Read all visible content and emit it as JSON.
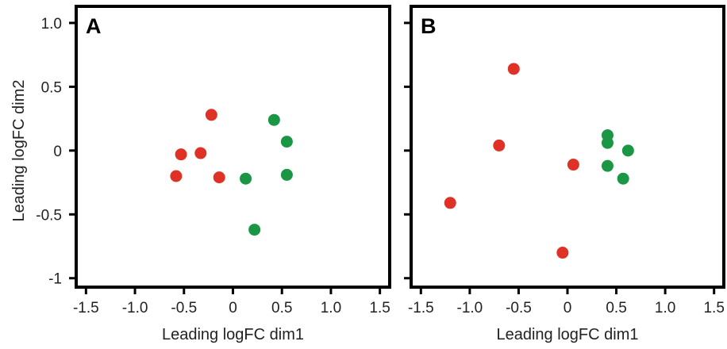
{
  "colors": {
    "red": "#e03127",
    "green": "#1a9645"
  },
  "chart_data": [
    {
      "type": "scatter",
      "panel_label": "A",
      "xlabel": "Leading logFC dim1",
      "ylabel": "Leading logFC dim2",
      "xlim": [
        -1.6,
        1.6
      ],
      "ylim": [
        -1.07,
        1.13
      ],
      "xticks": [
        -1.5,
        -1.0,
        -0.5,
        0,
        0.5,
        1.0,
        1.5
      ],
      "xtick_labels": [
        "-1.5",
        "-1.0",
        "-0.5",
        "0",
        "0.5",
        "1.0",
        "1.5"
      ],
      "yticks": [
        1.0,
        0.5,
        0,
        -0.5,
        -1
      ],
      "ytick_labels": [
        "1.0",
        "0.5",
        "0",
        "-0.5",
        "-1"
      ],
      "series": [
        {
          "color": "red",
          "points": [
            [
              -0.22,
              0.28
            ],
            [
              -0.53,
              -0.03
            ],
            [
              -0.33,
              -0.02
            ],
            [
              -0.58,
              -0.2
            ],
            [
              -0.14,
              -0.21
            ]
          ]
        },
        {
          "color": "green",
          "points": [
            [
              0.42,
              0.24
            ],
            [
              0.55,
              0.07
            ],
            [
              0.55,
              -0.19
            ],
            [
              0.13,
              -0.22
            ],
            [
              0.22,
              -0.62
            ]
          ]
        }
      ]
    },
    {
      "type": "scatter",
      "panel_label": "B",
      "xlabel": "Leading logFC dim1",
      "ylabel": "",
      "xlim": [
        -1.6,
        1.6
      ],
      "ylim": [
        -1.07,
        1.13
      ],
      "xticks": [
        -1.5,
        -1.0,
        -0.5,
        0,
        0.5,
        1.0,
        1.5
      ],
      "xtick_labels": [
        "-1.5",
        "-1.0",
        "-0.5",
        "0",
        "0.5",
        "1.0",
        "1.5"
      ],
      "yticks": [
        1.0,
        0.5,
        0,
        -0.5,
        -1
      ],
      "ytick_labels": [],
      "series": [
        {
          "color": "red",
          "points": [
            [
              -0.55,
              0.64
            ],
            [
              -0.7,
              0.04
            ],
            [
              0.06,
              -0.11
            ],
            [
              -1.2,
              -0.41
            ],
            [
              -0.05,
              -0.8
            ]
          ]
        },
        {
          "color": "green",
          "points": [
            [
              0.41,
              0.12
            ],
            [
              0.41,
              0.06
            ],
            [
              0.62,
              0.0
            ],
            [
              0.41,
              -0.12
            ],
            [
              0.57,
              -0.22
            ]
          ]
        }
      ]
    }
  ]
}
